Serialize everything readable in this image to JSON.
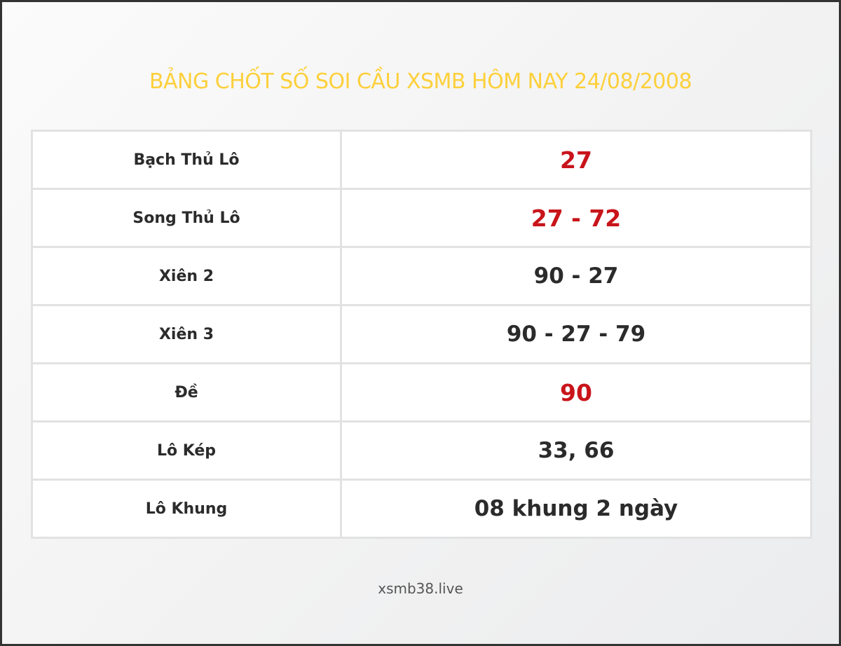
{
  "title": "BẢNG CHỐT SỐ SOI CẦU XSMB HÔM NAY 24/08/2008",
  "rows": [
    {
      "label": "Bạch Thủ Lô",
      "value": "27",
      "highlight": true
    },
    {
      "label": "Song Thủ Lô",
      "value": "27 - 72",
      "highlight": true
    },
    {
      "label": "Xiên 2",
      "value": "90 - 27",
      "highlight": false
    },
    {
      "label": "Xiên 3",
      "value": "90 - 27 - 79",
      "highlight": false
    },
    {
      "label": "Đề",
      "value": "90",
      "highlight": true
    },
    {
      "label": "Lô Kép",
      "value": "33, 66",
      "highlight": false
    },
    {
      "label": "Lô Khung",
      "value": "08 khung 2 ngày",
      "highlight": false
    }
  ],
  "footer": "xsmb38.live",
  "colors": {
    "title": "#fdd03b",
    "highlight": "#c8141a",
    "text": "#2b2b2b"
  }
}
